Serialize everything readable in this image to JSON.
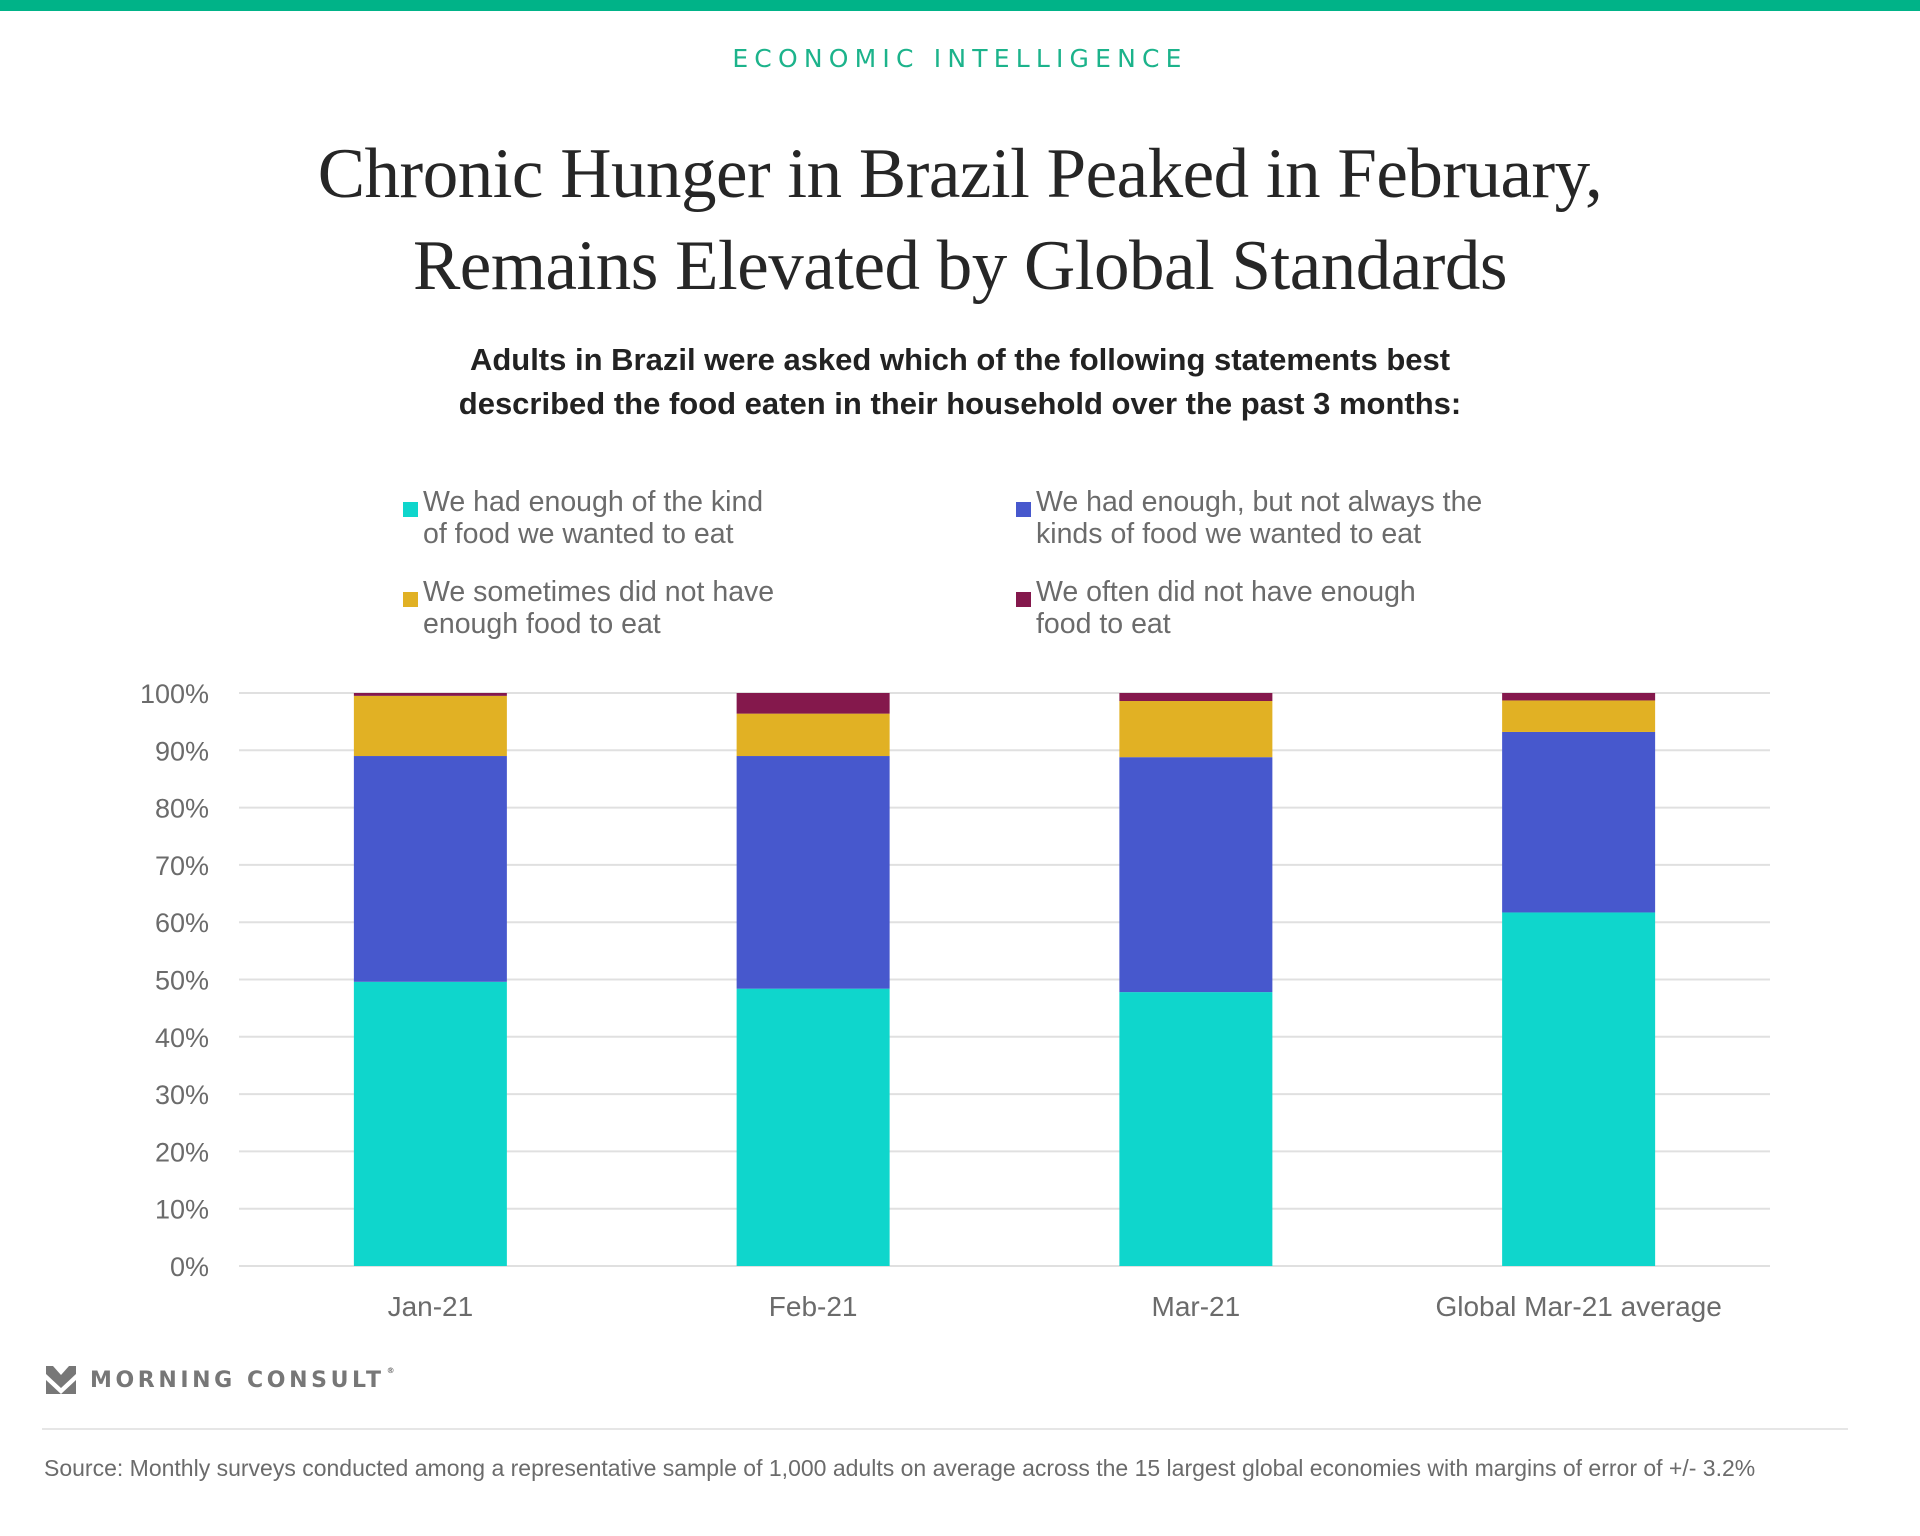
{
  "header": {
    "kicker": "ECONOMIC INTELLIGENCE",
    "title_line1": "Chronic Hunger in Brazil Peaked in February,",
    "title_line2": "Remains Elevated by Global Standards",
    "subtitle_line1": "Adults in Brazil were asked which of the following statements best",
    "subtitle_line2": "described the food eaten in their household over the past 3 months:"
  },
  "legend": [
    {
      "line1": "We had enough of the kind",
      "line2": "of food we wanted to eat",
      "color": "#0fd6cc"
    },
    {
      "line1": "We had enough, but not always the",
      "line2": "kinds of food we wanted to eat",
      "color": "#4758cd"
    },
    {
      "line1": "We sometimes did not have",
      "line2": "enough food to eat",
      "color": "#e1b124"
    },
    {
      "line1": "We often did not have enough",
      "line2": "food to eat",
      "color": "#84184c"
    }
  ],
  "chart_data": {
    "type": "bar",
    "stacked": true,
    "title": "Chronic Hunger in Brazil Peaked in February, Remains Elevated by Global Standards",
    "xlabel": "",
    "ylabel": "",
    "categories": [
      "Jan-21",
      "Feb-21",
      "Mar-21",
      "Global Mar-21 average"
    ],
    "series": [
      {
        "name": "We had enough of the kind of food we wanted to eat",
        "color": "#0fd6cc",
        "values": [
          49.6,
          48.4,
          47.8,
          61.7
        ]
      },
      {
        "name": "We had enough, but not always the kinds of food we wanted to eat",
        "color": "#4758cd",
        "values": [
          39.4,
          40.6,
          41.0,
          31.5
        ]
      },
      {
        "name": "We sometimes did not have enough food to eat",
        "color": "#e1b124",
        "values": [
          10.5,
          7.4,
          9.8,
          5.5
        ]
      },
      {
        "name": "We often did not have enough food to eat",
        "color": "#84184c",
        "values": [
          0.5,
          3.6,
          1.4,
          1.3
        ]
      }
    ],
    "ylim": [
      0,
      100
    ],
    "yticks": [
      "0%",
      "10%",
      "20%",
      "30%",
      "40%",
      "50%",
      "60%",
      "70%",
      "80%",
      "90%",
      "100%"
    ],
    "grid": true,
    "legend_position": "top"
  },
  "footer": {
    "brand": "MORNING CONSULT",
    "brand_mark": "®",
    "source": "Source: Monthly surveys conducted among a representative sample of 1,000 adults on average across the 15 largest global economies with margins of error of +/- 3.2%"
  }
}
